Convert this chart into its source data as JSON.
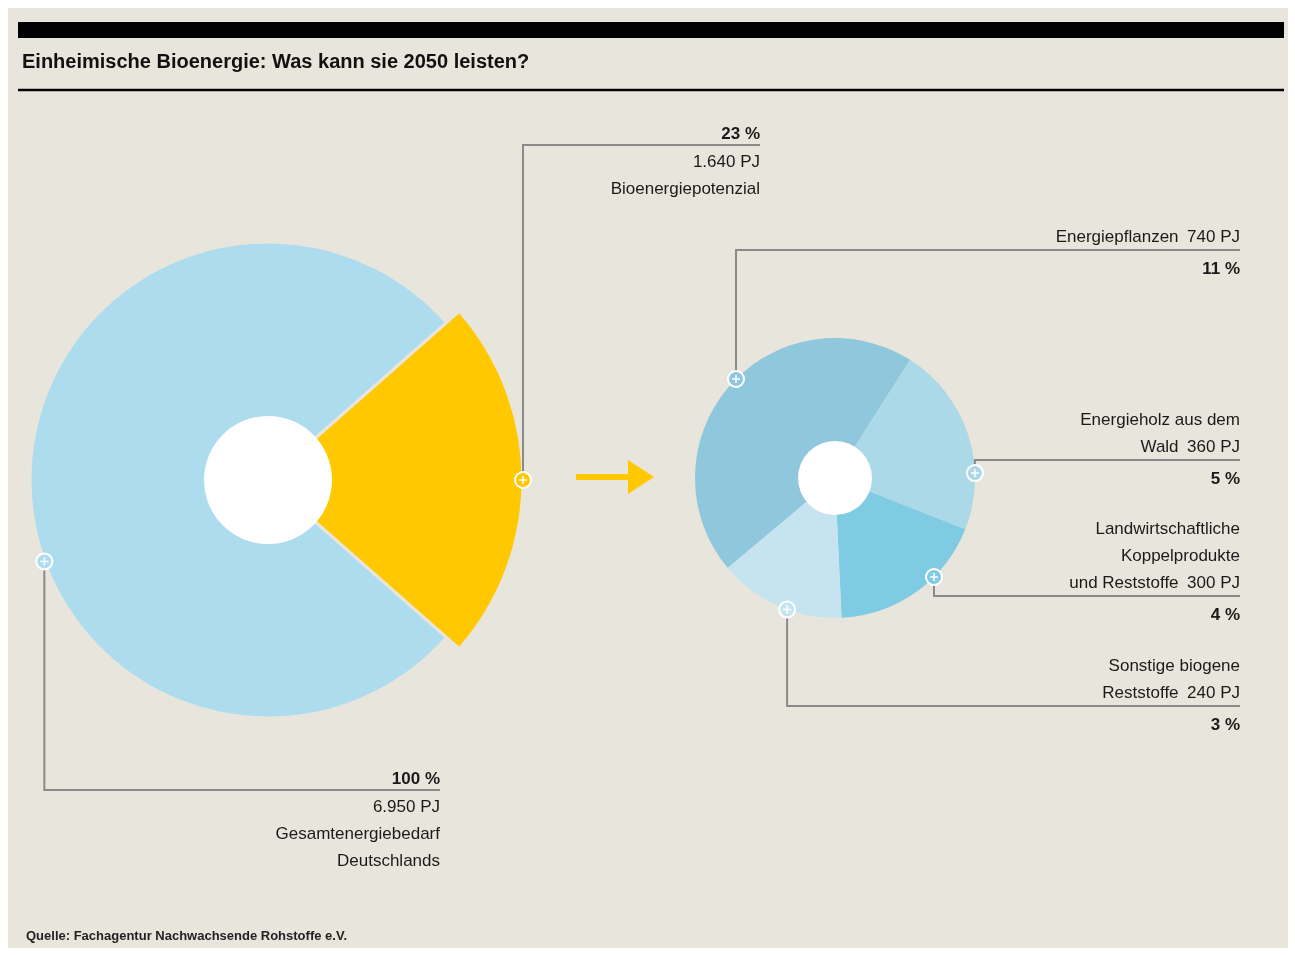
{
  "chart_data": [
    {
      "type": "donut",
      "title": "Einheimische Bioenergie: Was kann sie 2050 leisten?",
      "categories": [
        "Gesamtenergiebedarf\nDeutschlands",
        "Bioenergiepotenzial"
      ],
      "values": [
        77,
        23
      ],
      "colors": [
        "#aedcef",
        "#ffc800"
      ],
      "value_labels": [
        null,
        "23 %\n1.640 PJ"
      ],
      "annotations": [
        "100 %\n6.950 PJ",
        "Quelle: Fachagentur Nachwachsende Rohstoffe e.V."
      ]
    },
    {
      "type": "donut",
      "categories": [
        "Energiepflanzen",
        "Energieholz aus dem\nWald",
        "Landwirtschaftliche\nKoppelprodukte\nund Reststoffe",
        "Sonstige biogene\nReststoffe"
      ],
      "values": [
        740,
        360,
        300,
        240
      ],
      "colors": [
        "#8fc7dc",
        "#acd9e8",
        "#7ecbe3",
        "#c6e4ef"
      ],
      "value_labels": [
        "740 PJ\n11 %",
        "360 PJ\n5 %",
        "300 PJ\n4 %",
        "240 PJ\n3 %"
      ]
    }
  ]
}
